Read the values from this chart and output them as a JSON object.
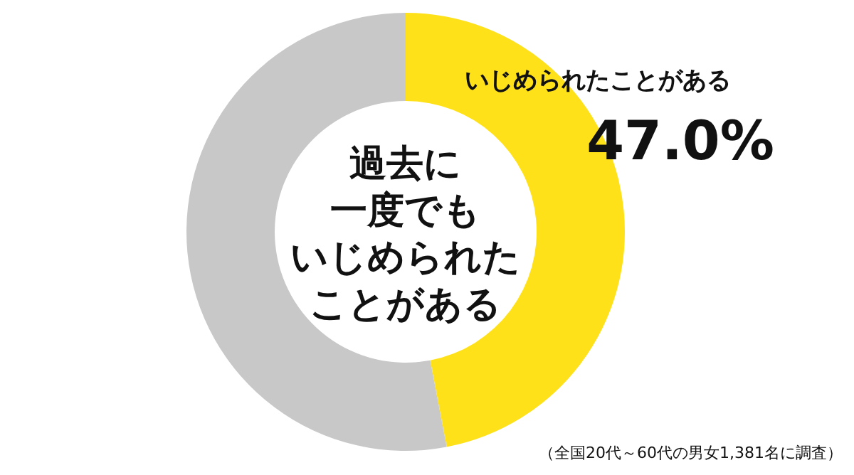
{
  "chart_data": {
    "type": "donut",
    "title": "過去に一度でもいじめられたことがある",
    "categories": [
      "いじめられたことがある",
      null
    ],
    "values": [
      47.0,
      53.0
    ],
    "colors": [
      "#ffe11a",
      "#c8c8c8"
    ],
    "value_labels": [
      "47.0%",
      null
    ],
    "annotations": [
      "（全国20代～60代の男女1,381名に調査）"
    ]
  }
}
